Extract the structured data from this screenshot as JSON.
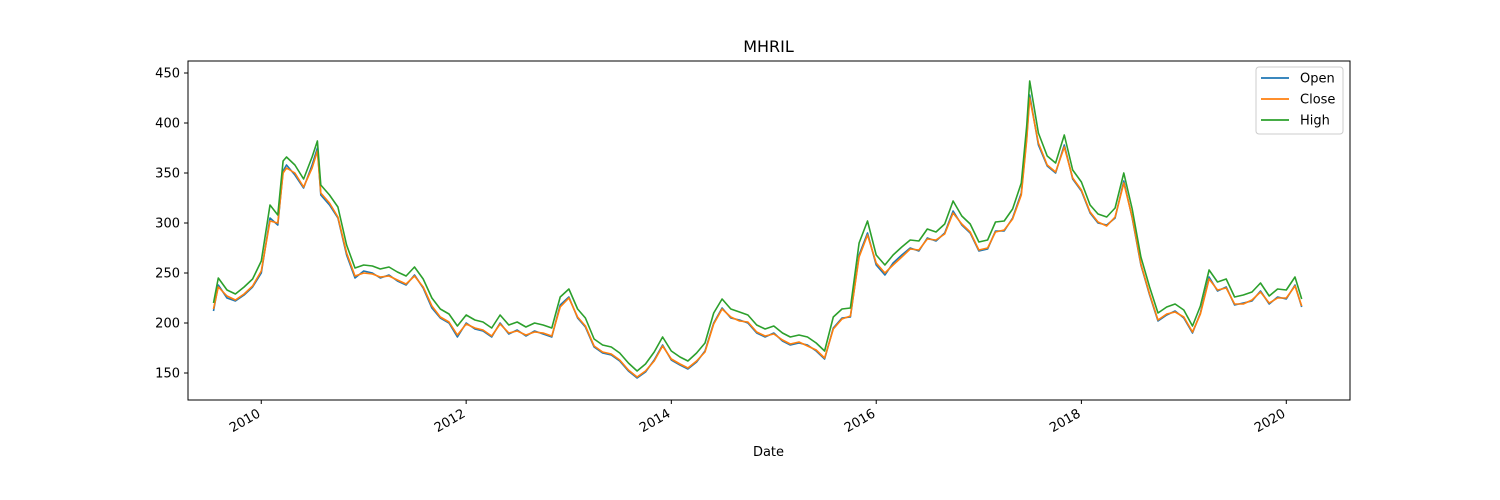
{
  "chart_data": {
    "type": "line",
    "title": "MHRIL",
    "xlabel": "Date",
    "ylabel": "",
    "xlim": [
      "2009-04-15",
      "2020-08-15"
    ],
    "ylim": [
      123,
      462
    ],
    "x_ticks": [
      {
        "date": "2010-01-01",
        "label": "2010"
      },
      {
        "date": "2012-01-01",
        "label": "2012"
      },
      {
        "date": "2014-01-01",
        "label": "2014"
      },
      {
        "date": "2016-01-01",
        "label": "2016"
      },
      {
        "date": "2018-01-01",
        "label": "2018"
      },
      {
        "date": "2020-01-01",
        "label": "2020"
      }
    ],
    "y_ticks": [
      150,
      200,
      250,
      300,
      350,
      400,
      450
    ],
    "grid": false,
    "legend_position": "top-right",
    "x": [
      "2009-07-15",
      "2009-08-01",
      "2009-09-01",
      "2009-10-01",
      "2009-11-01",
      "2009-12-01",
      "2010-01-01",
      "2010-02-01",
      "2010-03-01",
      "2010-03-20",
      "2010-04-01",
      "2010-05-01",
      "2010-06-01",
      "2010-07-01",
      "2010-07-20",
      "2010-08-01",
      "2010-09-01",
      "2010-10-01",
      "2010-11-01",
      "2010-12-01",
      "2011-01-01",
      "2011-02-01",
      "2011-03-01",
      "2011-04-01",
      "2011-05-01",
      "2011-06-01",
      "2011-07-01",
      "2011-08-01",
      "2011-09-01",
      "2011-10-01",
      "2011-11-01",
      "2011-12-01",
      "2012-01-01",
      "2012-02-01",
      "2012-03-01",
      "2012-04-01",
      "2012-05-01",
      "2012-06-01",
      "2012-07-01",
      "2012-08-01",
      "2012-09-01",
      "2012-10-01",
      "2012-11-01",
      "2012-12-01",
      "2013-01-01",
      "2013-02-01",
      "2013-03-01",
      "2013-04-01",
      "2013-05-01",
      "2013-06-01",
      "2013-07-01",
      "2013-08-01",
      "2013-09-01",
      "2013-10-01",
      "2013-11-01",
      "2013-12-01",
      "2014-01-01",
      "2014-02-01",
      "2014-03-01",
      "2014-04-01",
      "2014-05-01",
      "2014-06-01",
      "2014-07-01",
      "2014-08-01",
      "2014-09-01",
      "2014-10-01",
      "2014-11-01",
      "2014-12-01",
      "2015-01-01",
      "2015-02-01",
      "2015-03-01",
      "2015-04-01",
      "2015-05-01",
      "2015-06-01",
      "2015-07-01",
      "2015-08-01",
      "2015-09-01",
      "2015-10-01",
      "2015-11-01",
      "2015-12-01",
      "2016-01-01",
      "2016-02-01",
      "2016-03-01",
      "2016-04-01",
      "2016-05-01",
      "2016-06-01",
      "2016-07-01",
      "2016-08-01",
      "2016-09-01",
      "2016-10-01",
      "2016-11-01",
      "2016-12-01",
      "2017-01-01",
      "2017-02-01",
      "2017-03-01",
      "2017-04-01",
      "2017-05-01",
      "2017-06-01",
      "2017-06-20",
      "2017-07-01",
      "2017-08-01",
      "2017-09-01",
      "2017-10-01",
      "2017-11-01",
      "2017-12-01",
      "2018-01-01",
      "2018-02-01",
      "2018-03-01",
      "2018-04-01",
      "2018-05-01",
      "2018-06-01",
      "2018-07-01",
      "2018-08-01",
      "2018-09-01",
      "2018-10-01",
      "2018-11-01",
      "2018-12-01",
      "2019-01-01",
      "2019-02-01",
      "2019-03-01",
      "2019-04-01",
      "2019-05-01",
      "2019-06-01",
      "2019-07-01",
      "2019-08-01",
      "2019-09-01",
      "2019-10-01",
      "2019-11-01",
      "2019-12-01",
      "2020-01-01",
      "2020-02-01",
      "2020-02-25"
    ],
    "series": [
      {
        "name": "Open",
        "color": "#1f77b4",
        "values": [
          212,
          238,
          225,
          222,
          228,
          236,
          250,
          305,
          298,
          352,
          358,
          348,
          335,
          358,
          375,
          328,
          318,
          305,
          268,
          245,
          252,
          250,
          245,
          248,
          242,
          238,
          248,
          235,
          215,
          205,
          200,
          186,
          200,
          194,
          192,
          186,
          200,
          189,
          193,
          187,
          192,
          189,
          186,
          218,
          226,
          205,
          196,
          176,
          170,
          168,
          162,
          152,
          145,
          151,
          163,
          178,
          163,
          158,
          154,
          161,
          172,
          200,
          215,
          205,
          203,
          200,
          190,
          186,
          190,
          182,
          178,
          180,
          178,
          172,
          164,
          195,
          205,
          206,
          268,
          290,
          258,
          248,
          260,
          268,
          275,
          272,
          285,
          282,
          290,
          312,
          298,
          290,
          272,
          274,
          292,
          292,
          305,
          330,
          385,
          428,
          378,
          357,
          350,
          378,
          344,
          332,
          310,
          300,
          298,
          305,
          342,
          305,
          258,
          228,
          202,
          208,
          212,
          205,
          190,
          210,
          246,
          232,
          236,
          218,
          220,
          222,
          232,
          219,
          226,
          224,
          238,
          216
        ]
      },
      {
        "name": "Close",
        "color": "#ff7f0e",
        "values": [
          214,
          236,
          227,
          223,
          229,
          237,
          252,
          302,
          300,
          350,
          355,
          350,
          336,
          355,
          372,
          330,
          320,
          306,
          270,
          247,
          250,
          249,
          246,
          247,
          243,
          239,
          247,
          236,
          217,
          206,
          201,
          188,
          199,
          195,
          193,
          187,
          199,
          190,
          192,
          188,
          191,
          190,
          187,
          216,
          225,
          206,
          197,
          177,
          171,
          169,
          163,
          153,
          146,
          152,
          162,
          177,
          164,
          159,
          155,
          162,
          171,
          199,
          214,
          206,
          202,
          201,
          191,
          187,
          189,
          183,
          179,
          181,
          177,
          173,
          165,
          194,
          204,
          207,
          266,
          288,
          260,
          250,
          258,
          266,
          274,
          273,
          284,
          283,
          289,
          310,
          299,
          291,
          273,
          275,
          291,
          293,
          304,
          328,
          383,
          425,
          380,
          358,
          351,
          376,
          345,
          333,
          311,
          301,
          297,
          306,
          340,
          306,
          259,
          229,
          203,
          209,
          211,
          206,
          191,
          209,
          244,
          233,
          235,
          219,
          219,
          223,
          231,
          220,
          225,
          225,
          237,
          217
        ]
      },
      {
        "name": "High",
        "color": "#2ca02c",
        "values": [
          220,
          245,
          233,
          229,
          236,
          244,
          262,
          318,
          308,
          362,
          366,
          358,
          344,
          366,
          382,
          338,
          328,
          316,
          278,
          255,
          258,
          257,
          254,
          256,
          251,
          247,
          256,
          244,
          225,
          214,
          209,
          197,
          208,
          203,
          201,
          195,
          208,
          198,
          201,
          196,
          200,
          198,
          195,
          226,
          234,
          214,
          205,
          184,
          178,
          176,
          170,
          160,
          152,
          159,
          171,
          186,
          172,
          166,
          162,
          170,
          180,
          210,
          224,
          214,
          211,
          208,
          198,
          194,
          197,
          190,
          186,
          188,
          186,
          180,
          172,
          206,
          214,
          215,
          280,
          302,
          268,
          258,
          268,
          276,
          283,
          282,
          294,
          291,
          299,
          322,
          307,
          299,
          281,
          283,
          301,
          302,
          314,
          340,
          397,
          442,
          390,
          367,
          360,
          388,
          353,
          341,
          318,
          309,
          306,
          315,
          350,
          314,
          266,
          236,
          210,
          216,
          219,
          213,
          197,
          217,
          253,
          241,
          244,
          226,
          228,
          231,
          240,
          227,
          234,
          233,
          246,
          224
        ]
      }
    ]
  }
}
